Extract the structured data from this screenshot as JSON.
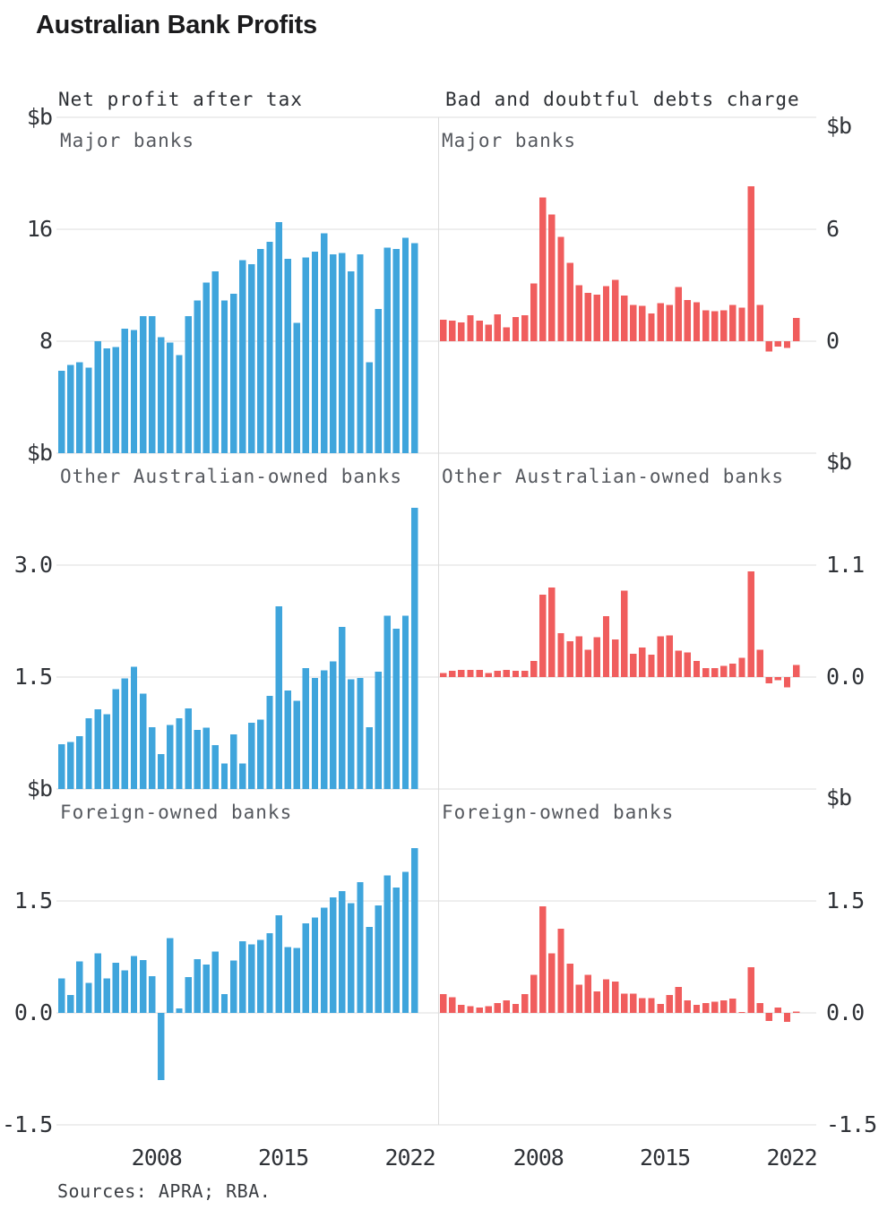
{
  "title": "Australian Bank Profits",
  "source_note": "Sources: APRA; RBA.",
  "columns": [
    {
      "header": "Net profit after tax",
      "color": "#3fa5dc"
    },
    {
      "header": "Bad and doubtful debts charge",
      "color": "#f05d5d"
    }
  ],
  "axis": {
    "left_labels": [
      "$b",
      "16",
      "8",
      "$b",
      "3.0",
      "1.5",
      "$b",
      "1.5",
      "0.0",
      "-1.5"
    ],
    "right_labels": [
      "$b",
      "6",
      "0",
      "$b",
      "1.1",
      "0.0",
      "$b",
      "1.5",
      "0.0",
      "-1.5"
    ],
    "grid_color": "#dcdcdc"
  },
  "x_ticks": [
    {
      "label": "2008",
      "index": 10
    },
    {
      "label": "2015",
      "index": 24
    },
    {
      "label": "2022",
      "index": 38
    }
  ],
  "chart_data": [
    {
      "type": "bar",
      "row": 0,
      "col": 0,
      "title": "Major banks",
      "measure": "Net profit after tax",
      "unit": "$b",
      "frequency": "half-yearly",
      "x_start": 2003,
      "x_end": 2022,
      "ylim": [
        0,
        24
      ],
      "ygrid": [
        8,
        16
      ],
      "grid": true,
      "legend": "none",
      "values": [
        5.9,
        6.3,
        6.5,
        6.1,
        8.0,
        7.5,
        7.6,
        8.9,
        8.8,
        9.8,
        9.8,
        8.3,
        7.9,
        7.0,
        9.8,
        10.9,
        12.2,
        13.0,
        10.9,
        11.4,
        13.8,
        13.5,
        14.6,
        15.1,
        16.5,
        13.9,
        9.3,
        14.0,
        14.4,
        15.7,
        14.2,
        14.3,
        13.0,
        14.2,
        6.5,
        10.3,
        14.7,
        14.6,
        15.4,
        15.0
      ]
    },
    {
      "type": "bar",
      "row": 0,
      "col": 1,
      "title": "Major banks",
      "measure": "Bad and doubtful debts charge",
      "unit": "$b",
      "frequency": "half-yearly",
      "x_start": 2003,
      "x_end": 2022,
      "ylim": [
        -6,
        12
      ],
      "ygrid": [
        0,
        6
      ],
      "grid": true,
      "legend": "none",
      "values": [
        1.15,
        1.1,
        1.0,
        1.4,
        1.1,
        0.9,
        1.45,
        0.75,
        1.3,
        1.4,
        3.1,
        7.7,
        6.8,
        5.6,
        4.2,
        3.0,
        2.6,
        2.5,
        2.95,
        3.3,
        2.45,
        1.95,
        1.9,
        1.5,
        2.05,
        1.95,
        2.9,
        2.2,
        2.1,
        1.65,
        1.6,
        1.65,
        1.95,
        1.8,
        8.3,
        1.95,
        -0.55,
        -0.3,
        -0.35,
        1.25
      ]
    },
    {
      "type": "bar",
      "row": 1,
      "col": 0,
      "title": "Other Australian-owned banks",
      "measure": "Net profit after tax",
      "unit": "$b",
      "frequency": "half-yearly",
      "x_start": 2003,
      "x_end": 2022,
      "ylim": [
        0,
        4.5
      ],
      "ygrid": [
        1.5,
        3.0
      ],
      "grid": true,
      "legend": "none",
      "values": [
        0.6,
        0.63,
        0.71,
        0.95,
        1.07,
        1.0,
        1.34,
        1.48,
        1.64,
        1.28,
        0.83,
        0.47,
        0.86,
        0.95,
        1.08,
        0.79,
        0.82,
        0.59,
        0.34,
        0.73,
        0.34,
        0.89,
        0.93,
        1.25,
        2.45,
        1.32,
        1.18,
        1.62,
        1.49,
        1.59,
        1.71,
        2.17,
        1.47,
        1.49,
        0.83,
        1.57,
        2.32,
        2.15,
        2.32,
        3.77
      ]
    },
    {
      "type": "bar",
      "row": 1,
      "col": 1,
      "title": "Other Australian-owned banks",
      "measure": "Bad and doubtful debts charge",
      "unit": "$b",
      "frequency": "half-yearly",
      "x_start": 2003,
      "x_end": 2022,
      "ylim": [
        -1.1,
        2.2
      ],
      "ygrid": [
        0.0,
        1.1
      ],
      "grid": true,
      "legend": "none",
      "values": [
        0.04,
        0.06,
        0.07,
        0.07,
        0.07,
        0.04,
        0.06,
        0.07,
        0.06,
        0.06,
        0.16,
        0.81,
        0.88,
        0.43,
        0.35,
        0.4,
        0.27,
        0.39,
        0.6,
        0.37,
        0.85,
        0.23,
        0.29,
        0.22,
        0.4,
        0.41,
        0.26,
        0.24,
        0.16,
        0.09,
        0.09,
        0.11,
        0.13,
        0.19,
        1.04,
        0.27,
        -0.06,
        -0.03,
        -0.1,
        0.12
      ]
    },
    {
      "type": "bar",
      "row": 2,
      "col": 0,
      "title": "Foreign-owned banks",
      "measure": "Net profit after tax",
      "unit": "$b",
      "frequency": "half-yearly",
      "x_start": 2003,
      "x_end": 2022,
      "ylim": [
        -1.5,
        3.0
      ],
      "ygrid": [
        -1.5,
        0.0,
        1.5
      ],
      "grid": true,
      "legend": "none",
      "values": [
        0.46,
        0.24,
        0.69,
        0.4,
        0.8,
        0.46,
        0.67,
        0.57,
        0.76,
        0.71,
        0.49,
        -0.9,
        1.0,
        0.06,
        0.48,
        0.72,
        0.65,
        0.82,
        0.25,
        0.7,
        0.96,
        0.92,
        0.98,
        1.07,
        1.31,
        0.88,
        0.87,
        1.2,
        1.28,
        1.41,
        1.55,
        1.63,
        1.47,
        1.75,
        1.15,
        1.44,
        1.84,
        1.68,
        1.89,
        2.21
      ]
    },
    {
      "type": "bar",
      "row": 2,
      "col": 1,
      "title": "Foreign-owned banks",
      "measure": "Bad and doubtful debts charge",
      "unit": "$b",
      "frequency": "half-yearly",
      "x_start": 2003,
      "x_end": 2022,
      "ylim": [
        -1.5,
        3.0
      ],
      "ygrid": [
        -1.5,
        0.0,
        1.5
      ],
      "grid": true,
      "legend": "none",
      "values": [
        0.25,
        0.21,
        0.11,
        0.09,
        0.07,
        0.09,
        0.13,
        0.17,
        0.12,
        0.25,
        0.51,
        1.43,
        0.8,
        1.13,
        0.66,
        0.38,
        0.51,
        0.29,
        0.45,
        0.42,
        0.26,
        0.26,
        0.2,
        0.2,
        0.12,
        0.24,
        0.35,
        0.17,
        0.11,
        0.13,
        0.15,
        0.17,
        0.19,
        0.01,
        0.61,
        0.13,
        -0.11,
        0.07,
        -0.12,
        0.02
      ]
    }
  ]
}
